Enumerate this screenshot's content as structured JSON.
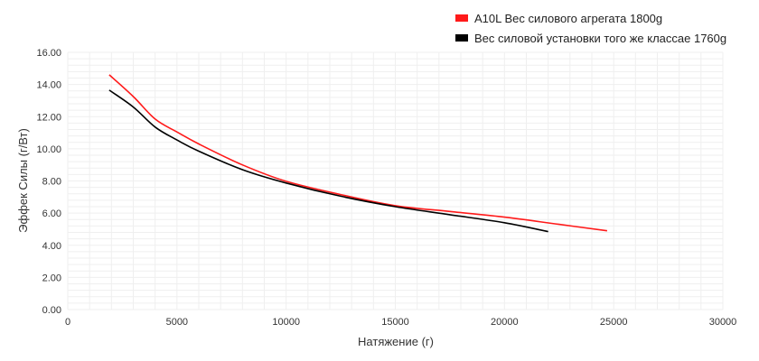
{
  "chart_data": {
    "type": "line",
    "title": "",
    "xlabel": "Натяжение (г)",
    "ylabel": "Эффек Силы (г/Вт)",
    "xlim": [
      0,
      30000
    ],
    "ylim": [
      0,
      16
    ],
    "x_ticks": [
      "0",
      "5000",
      "10000",
      "15000",
      "20000",
      "25000",
      "30000"
    ],
    "y_ticks": [
      "0.00",
      "2.00",
      "4.00",
      "6.00",
      "8.00",
      "10.00",
      "12.00",
      "14.00",
      "16.00"
    ],
    "grid": true,
    "legend_position": "top-right",
    "series": [
      {
        "name": "A10L Вес силового агрегата 1800g",
        "color": "#ff1a1a",
        "points": [
          [
            1900,
            14.6
          ],
          [
            3000,
            13.25
          ],
          [
            4000,
            11.85
          ],
          [
            5000,
            11.05
          ],
          [
            6000,
            10.3
          ],
          [
            8000,
            9.0
          ],
          [
            10000,
            7.98
          ],
          [
            12500,
            7.15
          ],
          [
            15000,
            6.46
          ],
          [
            17500,
            6.1
          ],
          [
            20000,
            5.75
          ],
          [
            22500,
            5.3
          ],
          [
            24700,
            4.9
          ]
        ]
      },
      {
        "name": "Вес силовой установки того же классае 1760g",
        "color": "#000000",
        "points": [
          [
            1900,
            13.65
          ],
          [
            3000,
            12.6
          ],
          [
            4000,
            11.35
          ],
          [
            5000,
            10.55
          ],
          [
            6000,
            9.85
          ],
          [
            8000,
            8.7
          ],
          [
            10000,
            7.87
          ],
          [
            12500,
            7.05
          ],
          [
            15000,
            6.4
          ],
          [
            17500,
            5.9
          ],
          [
            20000,
            5.4
          ],
          [
            22000,
            4.85
          ]
        ]
      }
    ]
  },
  "legend": {
    "items": [
      {
        "label": "A10L Вес силового агрегата 1800g",
        "color": "#ff1a1a"
      },
      {
        "label": "Вес силовой установки того же классае 1760g",
        "color": "#000000"
      }
    ]
  }
}
